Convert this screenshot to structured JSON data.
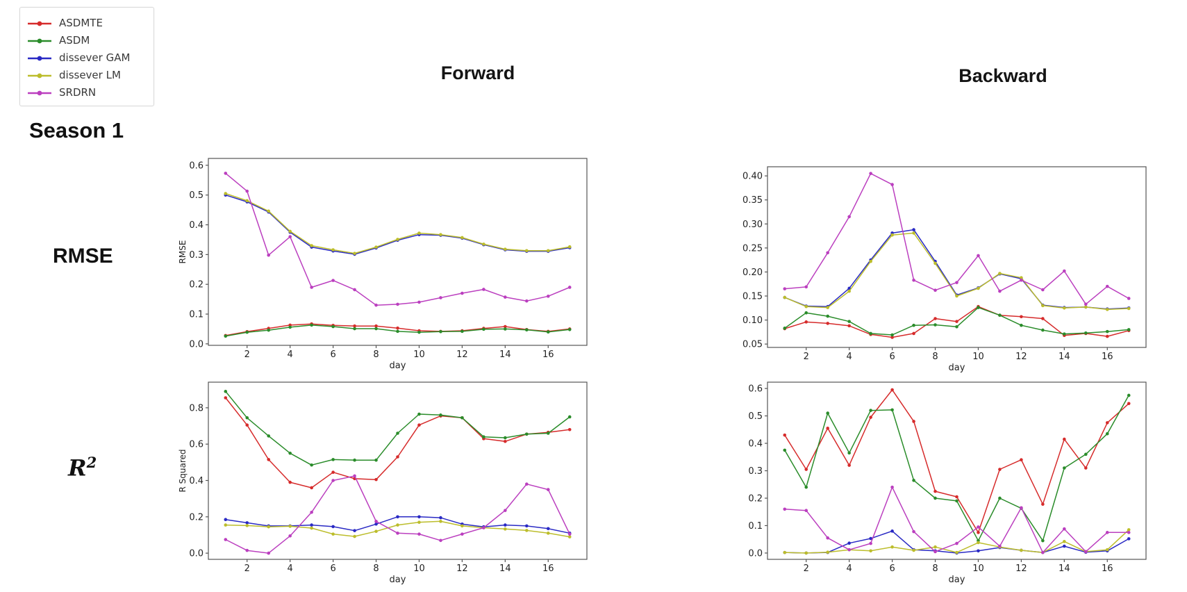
{
  "page": {
    "background": "#ffffff"
  },
  "legend": {
    "items": [
      {
        "label": "ASDMTE",
        "color": "#d62b2b"
      },
      {
        "label": "ASDM",
        "color": "#2a8c2a"
      },
      {
        "label": "dissever GAM",
        "color": "#2929c4"
      },
      {
        "label": "dissever LM",
        "color": "#bcbd2b"
      },
      {
        "label": "SRDRN",
        "color": "#bb3fbf"
      }
    ]
  },
  "headers": {
    "forward": "Forward",
    "backward": "Backward"
  },
  "row_labels": {
    "season": "Season 1",
    "metric1": "RMSE",
    "metric2_base": "R",
    "metric2_sup": "2"
  },
  "chart_data": [
    {
      "id": "forward-rmse",
      "type": "line",
      "column": "Forward",
      "xlabel": "day",
      "ylabel": "RMSE",
      "x": [
        1,
        2,
        3,
        4,
        5,
        6,
        7,
        8,
        9,
        10,
        11,
        12,
        13,
        14,
        15,
        16,
        17
      ],
      "xticks": [
        "2",
        "4",
        "6",
        "8",
        "10",
        "12",
        "14",
        "16"
      ],
      "xtick_values": [
        2,
        4,
        6,
        8,
        10,
        12,
        14,
        16
      ],
      "yticks": [
        0.0,
        0.1,
        0.2,
        0.3,
        0.4,
        0.5,
        0.6
      ],
      "ytick_labels": [
        "0.0",
        "0.1",
        "0.2",
        "0.3",
        "0.4",
        "0.5",
        "0.6"
      ],
      "xlim": [
        0.2,
        17.8
      ],
      "ylim": [
        -0.005,
        0.623
      ],
      "series": [
        {
          "name": "ASDMTE",
          "color": "#d62b2b",
          "values": [
            0.028,
            0.041,
            0.052,
            0.063,
            0.067,
            0.062,
            0.06,
            0.06,
            0.053,
            0.044,
            0.042,
            0.044,
            0.052,
            0.058,
            0.048,
            0.042,
            0.05
          ]
        },
        {
          "name": "ASDM",
          "color": "#2a8c2a",
          "values": [
            0.026,
            0.039,
            0.046,
            0.056,
            0.063,
            0.058,
            0.051,
            0.051,
            0.042,
            0.039,
            0.041,
            0.042,
            0.049,
            0.05,
            0.047,
            0.04,
            0.048
          ]
        },
        {
          "name": "dissever GAM",
          "color": "#2929c4",
          "values": [
            0.5,
            0.477,
            0.443,
            0.375,
            0.325,
            0.312,
            0.301,
            0.322,
            0.348,
            0.367,
            0.365,
            0.355,
            0.333,
            0.316,
            0.311,
            0.311,
            0.323
          ]
        },
        {
          "name": "dissever LM",
          "color": "#bcbd2b",
          "values": [
            0.505,
            0.481,
            0.446,
            0.378,
            0.33,
            0.316,
            0.304,
            0.325,
            0.351,
            0.372,
            0.367,
            0.357,
            0.335,
            0.318,
            0.313,
            0.313,
            0.326
          ]
        },
        {
          "name": "SRDRN",
          "color": "#bb3fbf",
          "values": [
            0.573,
            0.513,
            0.298,
            0.36,
            0.19,
            0.213,
            0.182,
            0.13,
            0.133,
            0.14,
            0.155,
            0.17,
            0.183,
            0.157,
            0.144,
            0.16,
            0.19
          ]
        }
      ]
    },
    {
      "id": "backward-rmse",
      "type": "line",
      "column": "Backward",
      "xlabel": "day",
      "ylabel": "",
      "x": [
        1,
        2,
        3,
        4,
        5,
        6,
        7,
        8,
        9,
        10,
        11,
        12,
        13,
        14,
        15,
        16,
        17
      ],
      "xticks": [
        "2",
        "4",
        "6",
        "8",
        "10",
        "12",
        "14",
        "16"
      ],
      "xtick_values": [
        2,
        4,
        6,
        8,
        10,
        12,
        14,
        16
      ],
      "yticks": [
        0.05,
        0.1,
        0.15,
        0.2,
        0.25,
        0.3,
        0.35,
        0.4
      ],
      "ytick_labels": [
        "0.05",
        "0.10",
        "0.15",
        "0.20",
        "0.25",
        "0.30",
        "0.35",
        "0.40"
      ],
      "xlim": [
        0.2,
        17.8
      ],
      "ylim": [
        0.043,
        0.419
      ],
      "series": [
        {
          "name": "ASDMTE",
          "color": "#d62b2b",
          "values": [
            0.082,
            0.096,
            0.093,
            0.088,
            0.07,
            0.064,
            0.072,
            0.103,
            0.097,
            0.128,
            0.11,
            0.107,
            0.103,
            0.068,
            0.072,
            0.066,
            0.078
          ]
        },
        {
          "name": "ASDM",
          "color": "#2a8c2a",
          "values": [
            0.083,
            0.115,
            0.108,
            0.097,
            0.072,
            0.069,
            0.089,
            0.09,
            0.086,
            0.126,
            0.11,
            0.089,
            0.079,
            0.071,
            0.073,
            0.076,
            0.08
          ]
        },
        {
          "name": "dissever GAM",
          "color": "#2929c4",
          "values": [
            0.147,
            0.129,
            0.128,
            0.166,
            0.225,
            0.281,
            0.288,
            0.222,
            0.152,
            0.167,
            0.196,
            0.186,
            0.131,
            0.126,
            0.127,
            0.123,
            0.125
          ]
        },
        {
          "name": "dissever LM",
          "color": "#bcbd2b",
          "values": [
            0.147,
            0.128,
            0.126,
            0.16,
            0.222,
            0.277,
            0.281,
            0.218,
            0.15,
            0.166,
            0.197,
            0.188,
            0.13,
            0.125,
            0.127,
            0.122,
            0.124
          ]
        },
        {
          "name": "SRDRN",
          "color": "#bb3fbf",
          "values": [
            0.165,
            0.169,
            0.24,
            0.315,
            0.405,
            0.382,
            0.183,
            0.162,
            0.178,
            0.234,
            0.16,
            0.183,
            0.163,
            0.202,
            0.133,
            0.17,
            0.145
          ]
        }
      ]
    },
    {
      "id": "forward-rsquared",
      "type": "line",
      "column": "Forward",
      "xlabel": "day",
      "ylabel": "R Squared",
      "x": [
        1,
        2,
        3,
        4,
        5,
        6,
        7,
        8,
        9,
        10,
        11,
        12,
        13,
        14,
        15,
        16,
        17
      ],
      "xticks": [
        "2",
        "4",
        "6",
        "8",
        "10",
        "12",
        "14",
        "16"
      ],
      "xtick_values": [
        2,
        4,
        6,
        8,
        10,
        12,
        14,
        16
      ],
      "yticks": [
        0.0,
        0.2,
        0.4,
        0.6,
        0.8
      ],
      "ytick_labels": [
        "0.0",
        "0.2",
        "0.4",
        "0.6",
        "0.8"
      ],
      "xlim": [
        0.2,
        17.8
      ],
      "ylim": [
        -0.034,
        0.941
      ],
      "series": [
        {
          "name": "ASDMTE",
          "color": "#d62b2b",
          "values": [
            0.855,
            0.705,
            0.515,
            0.39,
            0.36,
            0.445,
            0.41,
            0.405,
            0.53,
            0.705,
            0.755,
            0.745,
            0.63,
            0.615,
            0.655,
            0.665,
            0.68
          ]
        },
        {
          "name": "ASDM",
          "color": "#2a8c2a",
          "values": [
            0.89,
            0.745,
            0.645,
            0.55,
            0.485,
            0.515,
            0.512,
            0.512,
            0.66,
            0.765,
            0.76,
            0.745,
            0.64,
            0.635,
            0.655,
            0.66,
            0.75
          ]
        },
        {
          "name": "dissever GAM",
          "color": "#2929c4",
          "values": [
            0.185,
            0.167,
            0.15,
            0.15,
            0.155,
            0.146,
            0.124,
            0.16,
            0.2,
            0.2,
            0.195,
            0.16,
            0.145,
            0.155,
            0.15,
            0.135,
            0.11
          ]
        },
        {
          "name": "dissever LM",
          "color": "#bcbd2b",
          "values": [
            0.155,
            0.152,
            0.145,
            0.148,
            0.138,
            0.105,
            0.092,
            0.12,
            0.155,
            0.17,
            0.175,
            0.15,
            0.14,
            0.133,
            0.125,
            0.11,
            0.09
          ]
        },
        {
          "name": "SRDRN",
          "color": "#bb3fbf",
          "values": [
            0.075,
            0.015,
            0.0,
            0.095,
            0.225,
            0.4,
            0.425,
            0.175,
            0.11,
            0.105,
            0.07,
            0.105,
            0.14,
            0.235,
            0.38,
            0.35,
            0.105
          ]
        }
      ]
    },
    {
      "id": "backward-rsquared",
      "type": "line",
      "column": "Backward",
      "xlabel": "day",
      "ylabel": "",
      "x": [
        1,
        2,
        3,
        4,
        5,
        6,
        7,
        8,
        9,
        10,
        11,
        12,
        13,
        14,
        15,
        16,
        17
      ],
      "xticks": [
        "2",
        "4",
        "6",
        "8",
        "10",
        "12",
        "14",
        "16"
      ],
      "xtick_values": [
        2,
        4,
        6,
        8,
        10,
        12,
        14,
        16
      ],
      "yticks": [
        0.0,
        0.1,
        0.2,
        0.3,
        0.4,
        0.5,
        0.6
      ],
      "ytick_labels": [
        "0.0",
        "0.1",
        "0.2",
        "0.3",
        "0.4",
        "0.5",
        "0.6"
      ],
      "xlim": [
        0.2,
        17.8
      ],
      "ylim": [
        -0.023,
        0.623
      ],
      "series": [
        {
          "name": "ASDMTE",
          "color": "#d62b2b",
          "values": [
            0.43,
            0.305,
            0.455,
            0.32,
            0.495,
            0.595,
            0.48,
            0.225,
            0.205,
            0.075,
            0.305,
            0.34,
            0.178,
            0.415,
            0.31,
            0.475,
            0.545
          ]
        },
        {
          "name": "ASDM",
          "color": "#2a8c2a",
          "values": [
            0.375,
            0.24,
            0.51,
            0.365,
            0.52,
            0.522,
            0.265,
            0.2,
            0.19,
            0.045,
            0.2,
            0.163,
            0.045,
            0.31,
            0.36,
            0.435,
            0.575
          ]
        },
        {
          "name": "dissever GAM",
          "color": "#2929c4",
          "values": [
            0.002,
            0.0,
            0.002,
            0.036,
            0.053,
            0.08,
            0.012,
            0.008,
            0.0,
            0.008,
            0.02,
            0.01,
            0.002,
            0.025,
            0.003,
            0.008,
            0.052
          ]
        },
        {
          "name": "dissever LM",
          "color": "#bcbd2b",
          "values": [
            0.002,
            0.0,
            0.003,
            0.012,
            0.008,
            0.022,
            0.01,
            0.022,
            0.002,
            0.038,
            0.022,
            0.01,
            0.002,
            0.042,
            0.005,
            0.012,
            0.085
          ]
        },
        {
          "name": "SRDRN",
          "color": "#bb3fbf",
          "values": [
            0.16,
            0.155,
            0.055,
            0.012,
            0.035,
            0.24,
            0.078,
            0.005,
            0.035,
            0.095,
            0.025,
            0.165,
            0.002,
            0.088,
            0.005,
            0.075,
            0.075
          ]
        }
      ]
    }
  ]
}
